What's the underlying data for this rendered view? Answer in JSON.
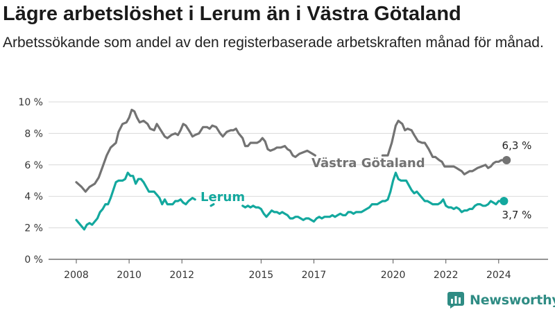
{
  "title": "Lägre arbetslöshet i Lerum än i Västra Götaland",
  "subtitle": "Arbetssökande som andel av den registerbaserade arbetskraften månad för månad.",
  "brand": {
    "name": "Newsworthy"
  },
  "colors": {
    "vastra": "#737373",
    "lerum": "#13a89e",
    "grid": "#d9d9d9",
    "axis": "#555555",
    "brand": "#2f8c84"
  },
  "chart_data": {
    "type": "line",
    "title": "Lägre arbetslöshet i Lerum än i Västra Götaland",
    "xlabel": "",
    "ylabel": "",
    "x_range": [
      2008,
      2025
    ],
    "ylim": [
      0,
      10
    ],
    "grid": true,
    "legend": "inline labels",
    "y_ticks": [
      {
        "value": 0,
        "label": "0 %"
      },
      {
        "value": 2,
        "label": "2 %"
      },
      {
        "value": 4,
        "label": "4 %"
      },
      {
        "value": 6,
        "label": "6 %"
      },
      {
        "value": 8,
        "label": "8 %"
      },
      {
        "value": 10,
        "label": "10 %"
      }
    ],
    "x_ticks": [
      {
        "value": 2008,
        "label": "2008"
      },
      {
        "value": 2010,
        "label": "2010"
      },
      {
        "value": 2012,
        "label": "2012"
      },
      {
        "value": 2015,
        "label": "2015"
      },
      {
        "value": 2017,
        "label": "2017"
      },
      {
        "value": 2020,
        "label": "2020"
      },
      {
        "value": 2022,
        "label": "2022"
      },
      {
        "value": 2024,
        "label": "2024"
      }
    ],
    "series": [
      {
        "name": "Västra Götaland",
        "color": "#737373",
        "end_label": "6,3 %",
        "segments": [
          [
            [
              2008.0,
              4.9
            ],
            [
              2008.2,
              4.6
            ],
            [
              2008.35,
              4.3
            ],
            [
              2008.5,
              4.6
            ],
            [
              2008.7,
              4.8
            ],
            [
              2008.85,
              5.2
            ],
            [
              2009.0,
              5.9
            ],
            [
              2009.15,
              6.6
            ],
            [
              2009.3,
              7.1
            ],
            [
              2009.5,
              7.4
            ],
            [
              2009.6,
              8.1
            ],
            [
              2009.75,
              8.6
            ],
            [
              2009.9,
              8.7
            ],
            [
              2010.0,
              9.0
            ],
            [
              2010.1,
              9.5
            ],
            [
              2010.2,
              9.4
            ],
            [
              2010.3,
              9.0
            ],
            [
              2010.4,
              8.7
            ],
            [
              2010.55,
              8.8
            ],
            [
              2010.7,
              8.6
            ],
            [
              2010.8,
              8.3
            ],
            [
              2010.95,
              8.2
            ],
            [
              2011.05,
              8.6
            ],
            [
              2011.2,
              8.2
            ],
            [
              2011.35,
              7.8
            ],
            [
              2011.45,
              7.7
            ],
            [
              2011.6,
              7.9
            ],
            [
              2011.75,
              8.0
            ],
            [
              2011.85,
              7.9
            ],
            [
              2011.95,
              8.2
            ],
            [
              2012.05,
              8.6
            ],
            [
              2012.15,
              8.5
            ],
            [
              2012.3,
              8.1
            ],
            [
              2012.4,
              7.8
            ],
            [
              2012.5,
              7.9
            ],
            [
              2012.65,
              8.0
            ],
            [
              2012.8,
              8.4
            ],
            [
              2012.95,
              8.4
            ],
            [
              2013.05,
              8.3
            ],
            [
              2013.15,
              8.5
            ],
            [
              2013.3,
              8.4
            ],
            [
              2013.45,
              8.0
            ],
            [
              2013.55,
              7.8
            ],
            [
              2013.7,
              8.1
            ],
            [
              2013.85,
              8.2
            ],
            [
              2013.95,
              8.2
            ],
            [
              2014.05,
              8.3
            ],
            [
              2014.15,
              8.0
            ],
            [
              2014.3,
              7.7
            ],
            [
              2014.4,
              7.2
            ],
            [
              2014.5,
              7.2
            ],
            [
              2014.6,
              7.4
            ],
            [
              2014.75,
              7.4
            ],
            [
              2014.85,
              7.4
            ],
            [
              2014.95,
              7.5
            ],
            [
              2015.05,
              7.7
            ],
            [
              2015.15,
              7.5
            ],
            [
              2015.25,
              7.0
            ],
            [
              2015.35,
              6.9
            ],
            [
              2015.5,
              7.0
            ],
            [
              2015.6,
              7.1
            ],
            [
              2015.75,
              7.1
            ],
            [
              2015.9,
              7.2
            ],
            [
              2016.0,
              7.0
            ],
            [
              2016.1,
              6.9
            ],
            [
              2016.2,
              6.6
            ],
            [
              2016.3,
              6.5
            ],
            [
              2016.45,
              6.7
            ],
            [
              2016.6,
              6.8
            ],
            [
              2016.75,
              6.9
            ],
            [
              2016.85,
              6.8
            ],
            [
              2016.95,
              6.7
            ],
            [
              2017.05,
              6.6
            ]
          ],
          [
            [
              2019.6,
              6.6
            ],
            [
              2019.7,
              6.6
            ],
            [
              2019.8,
              6.6
            ],
            [
              2019.95,
              7.4
            ],
            [
              2020.1,
              8.5
            ],
            [
              2020.2,
              8.8
            ],
            [
              2020.35,
              8.6
            ],
            [
              2020.45,
              8.2
            ],
            [
              2020.55,
              8.3
            ],
            [
              2020.7,
              8.2
            ],
            [
              2020.8,
              7.9
            ],
            [
              2020.95,
              7.5
            ],
            [
              2021.1,
              7.4
            ],
            [
              2021.2,
              7.4
            ],
            [
              2021.35,
              7.0
            ],
            [
              2021.5,
              6.5
            ],
            [
              2021.6,
              6.5
            ],
            [
              2021.75,
              6.3
            ],
            [
              2021.85,
              6.2
            ],
            [
              2021.95,
              5.9
            ],
            [
              2022.05,
              5.9
            ],
            [
              2022.2,
              5.9
            ],
            [
              2022.3,
              5.9
            ],
            [
              2022.4,
              5.8
            ],
            [
              2022.5,
              5.7
            ],
            [
              2022.6,
              5.6
            ],
            [
              2022.7,
              5.4
            ],
            [
              2022.8,
              5.5
            ],
            [
              2022.9,
              5.6
            ],
            [
              2023.0,
              5.6
            ],
            [
              2023.1,
              5.7
            ],
            [
              2023.2,
              5.8
            ],
            [
              2023.35,
              5.9
            ],
            [
              2023.5,
              6.0
            ],
            [
              2023.6,
              5.8
            ],
            [
              2023.7,
              5.9
            ],
            [
              2023.8,
              6.1
            ],
            [
              2023.9,
              6.2
            ],
            [
              2024.0,
              6.2
            ],
            [
              2024.1,
              6.3
            ],
            [
              2024.3,
              6.3
            ]
          ]
        ]
      },
      {
        "name": "Lerum",
        "color": "#13a89e",
        "end_label": "3,7 %",
        "segments": [
          [
            [
              2008.0,
              2.5
            ],
            [
              2008.1,
              2.3
            ],
            [
              2008.2,
              2.1
            ],
            [
              2008.3,
              1.9
            ],
            [
              2008.4,
              2.2
            ],
            [
              2008.5,
              2.3
            ],
            [
              2008.6,
              2.2
            ],
            [
              2008.7,
              2.4
            ],
            [
              2008.8,
              2.6
            ],
            [
              2008.9,
              3.0
            ],
            [
              2009.0,
              3.2
            ],
            [
              2009.1,
              3.5
            ],
            [
              2009.2,
              3.5
            ],
            [
              2009.3,
              3.9
            ],
            [
              2009.4,
              4.4
            ],
            [
              2009.5,
              4.9
            ],
            [
              2009.6,
              5.0
            ],
            [
              2009.75,
              5.0
            ],
            [
              2009.85,
              5.1
            ],
            [
              2009.95,
              5.5
            ],
            [
              2010.05,
              5.3
            ],
            [
              2010.15,
              5.3
            ],
            [
              2010.25,
              4.8
            ],
            [
              2010.35,
              5.1
            ],
            [
              2010.45,
              5.1
            ],
            [
              2010.55,
              4.9
            ],
            [
              2010.65,
              4.6
            ],
            [
              2010.75,
              4.3
            ],
            [
              2010.85,
              4.3
            ],
            [
              2010.95,
              4.3
            ],
            [
              2011.05,
              4.1
            ],
            [
              2011.15,
              3.9
            ],
            [
              2011.25,
              3.5
            ],
            [
              2011.35,
              3.8
            ],
            [
              2011.45,
              3.5
            ],
            [
              2011.55,
              3.5
            ],
            [
              2011.65,
              3.5
            ],
            [
              2011.75,
              3.7
            ],
            [
              2011.85,
              3.7
            ],
            [
              2011.95,
              3.8
            ],
            [
              2012.05,
              3.6
            ],
            [
              2012.15,
              3.5
            ],
            [
              2012.25,
              3.7
            ],
            [
              2012.4,
              3.9
            ],
            [
              2012.5,
              3.8
            ]
          ],
          [
            [
              2013.1,
              3.4
            ],
            [
              2013.2,
              3.5
            ]
          ],
          [
            [
              2014.3,
              3.4
            ],
            [
              2014.4,
              3.3
            ],
            [
              2014.5,
              3.4
            ],
            [
              2014.6,
              3.3
            ],
            [
              2014.7,
              3.4
            ],
            [
              2014.8,
              3.3
            ],
            [
              2014.9,
              3.3
            ],
            [
              2015.0,
              3.2
            ],
            [
              2015.1,
              2.9
            ],
            [
              2015.2,
              2.7
            ],
            [
              2015.3,
              2.9
            ],
            [
              2015.4,
              3.1
            ],
            [
              2015.5,
              3.0
            ],
            [
              2015.6,
              3.0
            ],
            [
              2015.7,
              2.9
            ],
            [
              2015.8,
              3.0
            ],
            [
              2015.9,
              2.9
            ],
            [
              2016.0,
              2.8
            ],
            [
              2016.1,
              2.6
            ],
            [
              2016.2,
              2.6
            ],
            [
              2016.3,
              2.7
            ],
            [
              2016.4,
              2.7
            ],
            [
              2016.5,
              2.6
            ],
            [
              2016.6,
              2.5
            ],
            [
              2016.7,
              2.6
            ],
            [
              2016.8,
              2.6
            ],
            [
              2016.9,
              2.5
            ],
            [
              2017.0,
              2.4
            ],
            [
              2017.1,
              2.6
            ],
            [
              2017.2,
              2.7
            ],
            [
              2017.3,
              2.6
            ],
            [
              2017.4,
              2.7
            ],
            [
              2017.5,
              2.7
            ],
            [
              2017.6,
              2.7
            ],
            [
              2017.7,
              2.8
            ],
            [
              2017.8,
              2.7
            ],
            [
              2017.9,
              2.8
            ],
            [
              2018.0,
              2.9
            ],
            [
              2018.1,
              2.8
            ],
            [
              2018.2,
              2.8
            ],
            [
              2018.3,
              3.0
            ],
            [
              2018.4,
              3.0
            ],
            [
              2018.5,
              2.9
            ],
            [
              2018.6,
              3.0
            ],
            [
              2018.7,
              3.0
            ],
            [
              2018.8,
              3.0
            ],
            [
              2018.9,
              3.1
            ],
            [
              2019.0,
              3.2
            ],
            [
              2019.1,
              3.3
            ],
            [
              2019.2,
              3.5
            ],
            [
              2019.3,
              3.5
            ],
            [
              2019.4,
              3.5
            ],
            [
              2019.5,
              3.6
            ],
            [
              2019.6,
              3.7
            ],
            [
              2019.7,
              3.7
            ],
            [
              2019.8,
              3.8
            ],
            [
              2019.9,
              4.3
            ],
            [
              2020.0,
              5.0
            ],
            [
              2020.1,
              5.5
            ],
            [
              2020.2,
              5.1
            ],
            [
              2020.3,
              5.0
            ],
            [
              2020.4,
              5.0
            ],
            [
              2020.5,
              5.0
            ],
            [
              2020.6,
              4.7
            ],
            [
              2020.7,
              4.4
            ],
            [
              2020.8,
              4.2
            ],
            [
              2020.9,
              4.3
            ],
            [
              2021.0,
              4.1
            ],
            [
              2021.1,
              3.9
            ],
            [
              2021.2,
              3.7
            ],
            [
              2021.3,
              3.7
            ],
            [
              2021.4,
              3.6
            ],
            [
              2021.5,
              3.5
            ],
            [
              2021.6,
              3.5
            ],
            [
              2021.7,
              3.5
            ],
            [
              2021.8,
              3.6
            ],
            [
              2021.9,
              3.8
            ],
            [
              2022.0,
              3.4
            ],
            [
              2022.1,
              3.3
            ],
            [
              2022.2,
              3.3
            ],
            [
              2022.3,
              3.2
            ],
            [
              2022.4,
              3.3
            ],
            [
              2022.5,
              3.2
            ],
            [
              2022.6,
              3.0
            ],
            [
              2022.7,
              3.1
            ],
            [
              2022.8,
              3.1
            ],
            [
              2022.9,
              3.2
            ],
            [
              2023.0,
              3.2
            ],
            [
              2023.1,
              3.4
            ],
            [
              2023.2,
              3.5
            ],
            [
              2023.3,
              3.5
            ],
            [
              2023.4,
              3.4
            ],
            [
              2023.5,
              3.4
            ],
            [
              2023.6,
              3.5
            ],
            [
              2023.7,
              3.7
            ],
            [
              2023.8,
              3.6
            ],
            [
              2023.9,
              3.5
            ],
            [
              2024.0,
              3.7
            ],
            [
              2024.2,
              3.7
            ]
          ]
        ]
      }
    ]
  }
}
